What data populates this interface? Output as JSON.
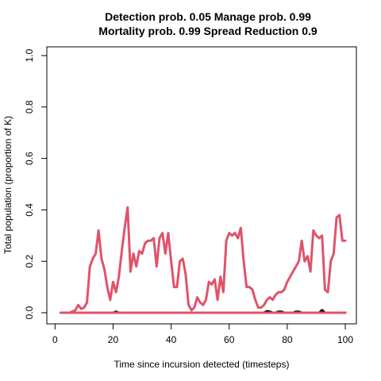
{
  "chart_data": {
    "type": "line",
    "title_line1": "Detection prob. 0.05 Manage prob. 0.99",
    "title_line2": "Mortality prob. 0.99 Spread Reduction 0.9",
    "xlabel": "Time since incursion detected (timesteps)",
    "ylabel": "Total population (proportion of K)",
    "xlim": [
      1,
      100
    ],
    "ylim": [
      0,
      1
    ],
    "x_ticks": [
      0,
      20,
      40,
      60,
      80,
      100
    ],
    "x_tick_labels": [
      "0",
      "20",
      "40",
      "60",
      "80",
      "100"
    ],
    "y_ticks": [
      0,
      0.2,
      0.4,
      0.6,
      0.8,
      1
    ],
    "y_tick_labels": [
      "0.0",
      "0.2",
      "0.4",
      "0.6",
      "0.8",
      "1.0"
    ],
    "grid": false,
    "colors": {
      "pink": "#DF536B",
      "black": "#000000"
    },
    "series": [
      {
        "color": "#DF536B",
        "points": [
          [
            2,
            0
          ],
          [
            3,
            0
          ],
          [
            4,
            0
          ],
          [
            5,
            0
          ],
          [
            6,
            0.005
          ],
          [
            7,
            0.01
          ],
          [
            8,
            0.03
          ],
          [
            9,
            0.015
          ],
          [
            10,
            0.02
          ],
          [
            11,
            0.04
          ],
          [
            12,
            0.18
          ],
          [
            13,
            0.21
          ],
          [
            14,
            0.23
          ],
          [
            15,
            0.32
          ],
          [
            16,
            0.21
          ],
          [
            17,
            0.17
          ],
          [
            18,
            0.1
          ],
          [
            19,
            0.05
          ],
          [
            20,
            0.12
          ],
          [
            21,
            0.08
          ],
          [
            22,
            0.14
          ],
          [
            23,
            0.24
          ],
          [
            24,
            0.33
          ],
          [
            25,
            0.41
          ],
          [
            26,
            0.16
          ],
          [
            27,
            0.23
          ],
          [
            28,
            0.18
          ],
          [
            29,
            0.24
          ],
          [
            30,
            0.23
          ],
          [
            31,
            0.27
          ],
          [
            32,
            0.28
          ],
          [
            33,
            0.28
          ],
          [
            34,
            0.29
          ],
          [
            35,
            0.18
          ],
          [
            36,
            0.29
          ],
          [
            37,
            0.31
          ],
          [
            38,
            0.23
          ],
          [
            39,
            0.31
          ],
          [
            40,
            0.2
          ],
          [
            41,
            0.1
          ],
          [
            42,
            0.1
          ],
          [
            43,
            0.2
          ],
          [
            44,
            0.21
          ],
          [
            45,
            0.15
          ],
          [
            46,
            0.03
          ],
          [
            47,
            0.01
          ],
          [
            48,
            0.02
          ],
          [
            49,
            0.06
          ],
          [
            50,
            0.04
          ],
          [
            51,
            0.03
          ],
          [
            52,
            0.05
          ],
          [
            53,
            0.12
          ],
          [
            54,
            0.11
          ],
          [
            55,
            0.13
          ],
          [
            56,
            0.05
          ],
          [
            57,
            0.14
          ],
          [
            58,
            0.08
          ],
          [
            59,
            0.28
          ],
          [
            60,
            0.31
          ],
          [
            61,
            0.3
          ],
          [
            62,
            0.31
          ],
          [
            63,
            0.29
          ],
          [
            64,
            0.33
          ],
          [
            65,
            0.2
          ],
          [
            66,
            0.1
          ],
          [
            67,
            0.1
          ],
          [
            68,
            0.09
          ],
          [
            69,
            0.05
          ],
          [
            70,
            0.02
          ],
          [
            71,
            0.02
          ],
          [
            72,
            0.03
          ],
          [
            73,
            0.05
          ],
          [
            74,
            0.06
          ],
          [
            75,
            0.05
          ],
          [
            76,
            0.07
          ],
          [
            77,
            0.08
          ],
          [
            78,
            0.08
          ],
          [
            79,
            0.09
          ],
          [
            80,
            0.12
          ],
          [
            81,
            0.14
          ],
          [
            82,
            0.16
          ],
          [
            83,
            0.18
          ],
          [
            84,
            0.2
          ],
          [
            85,
            0.28
          ],
          [
            86,
            0.2
          ],
          [
            87,
            0.22
          ],
          [
            88,
            0.16
          ],
          [
            89,
            0.32
          ],
          [
            90,
            0.3
          ],
          [
            91,
            0.29
          ],
          [
            92,
            0.3
          ],
          [
            93,
            0.09
          ],
          [
            94,
            0.08
          ],
          [
            95,
            0.2
          ],
          [
            96,
            0.23
          ],
          [
            97,
            0.37
          ],
          [
            98,
            0.38
          ],
          [
            99,
            0.28
          ],
          [
            100,
            0.28
          ]
        ]
      },
      {
        "color": "#000000",
        "points": [
          [
            2,
            0
          ],
          [
            20,
            0
          ],
          [
            21,
            0.004
          ],
          [
            22,
            0
          ],
          [
            72,
            0
          ],
          [
            73,
            0.006
          ],
          [
            74,
            0.004
          ],
          [
            75,
            0
          ],
          [
            76,
            0
          ],
          [
            77,
            0.004
          ],
          [
            78,
            0.004
          ],
          [
            79,
            0
          ],
          [
            82,
            0
          ],
          [
            83,
            0.004
          ],
          [
            84,
            0.004
          ],
          [
            85,
            0
          ],
          [
            91,
            0
          ],
          [
            92,
            0.01
          ],
          [
            93,
            0
          ],
          [
            100,
            0
          ]
        ]
      },
      {
        "color": "#DF536B",
        "points": [
          [
            2,
            0
          ],
          [
            100,
            0
          ]
        ]
      }
    ]
  }
}
